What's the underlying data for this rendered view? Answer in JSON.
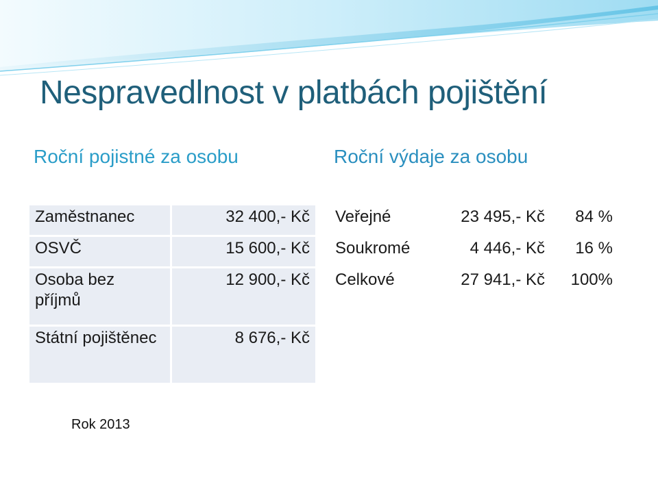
{
  "title": "Nespravedlnost v platbách pojištění",
  "headings": {
    "left": "Roční pojistné za osobu",
    "right": "Roční výdaje za osobu"
  },
  "premiums_table": [
    {
      "label": "Zaměstnanec",
      "value": "32 400,- Kč"
    },
    {
      "label": "OSVČ",
      "value": "15 600,- Kč"
    },
    {
      "label": "Osoba bez příjmů",
      "value": "12 900,- Kč"
    },
    {
      "label": "Státní pojištěnec",
      "value": "8 676,- Kč"
    }
  ],
  "expenses_table": [
    {
      "label": "Veřejné",
      "value": "23 495,- Kč",
      "share": "84 %"
    },
    {
      "label": "Soukromé",
      "value": "4 446,- Kč",
      "share": "16 %"
    },
    {
      "label": "Celkové",
      "value": "27 941,- Kč",
      "share": "100%"
    }
  ],
  "footer": "Rok 2013",
  "colors": {
    "title": "#1f5f7a",
    "heading": "#2a9dc8",
    "cell_background": "#e9edf4",
    "wave_light": "#bfe6f5",
    "wave_dark": "#4fb3d9"
  }
}
